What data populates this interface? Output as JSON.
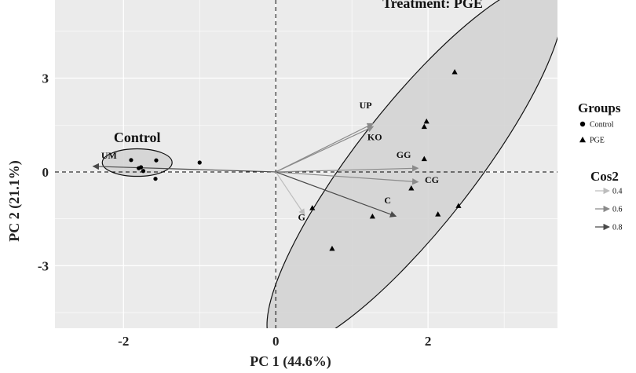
{
  "chart_data": {
    "type": "scatter",
    "subtype": "pca-biplot",
    "xlabel": "PC 1 (44.6%)",
    "ylabel": "PC 2 (21.1%)",
    "xlim": [
      -2.9,
      3.7
    ],
    "ylim": [
      -5.0,
      5.5
    ],
    "x_ticks": [
      -2,
      0,
      2
    ],
    "y_ticks": [
      -3,
      0,
      3
    ],
    "grid": true,
    "background": "#ebebeb",
    "groups": [
      {
        "name": "Control",
        "label": "Control",
        "marker": "circle",
        "points": [
          {
            "x": -1.9,
            "y": 0.38
          },
          {
            "x": -1.8,
            "y": 0.12
          },
          {
            "x": -1.77,
            "y": 0.15
          },
          {
            "x": -1.74,
            "y": 0.03
          },
          {
            "x": -1.57,
            "y": 0.37
          },
          {
            "x": -1.58,
            "y": -0.22
          },
          {
            "x": -1.0,
            "y": 0.3
          }
        ],
        "ellipse": {
          "cx": -1.82,
          "cy": 0.3,
          "rx": 0.65,
          "ry": 0.44,
          "angle": 0
        }
      },
      {
        "name": "PGE",
        "label": "Treatment: PGE",
        "marker": "triangle",
        "points": [
          {
            "x": 2.35,
            "y": 3.2
          },
          {
            "x": 1.98,
            "y": 1.62
          },
          {
            "x": 1.95,
            "y": 1.45
          },
          {
            "x": 1.95,
            "y": 0.42
          },
          {
            "x": 1.78,
            "y": -0.52
          },
          {
            "x": 0.48,
            "y": -1.15
          },
          {
            "x": 1.27,
            "y": -1.42
          },
          {
            "x": 0.74,
            "y": -2.45
          },
          {
            "x": 2.13,
            "y": -1.35
          },
          {
            "x": 2.4,
            "y": -1.08
          }
        ],
        "ellipse": {
          "cx": 1.83,
          "cy": 0.2,
          "rx": 4.25,
          "ry": 1.9,
          "angle": 52
        }
      }
    ],
    "variables": [
      {
        "name": "UP",
        "x": 1.28,
        "y": 1.55,
        "cos2": 0.62
      },
      {
        "name": "KO",
        "x": 1.28,
        "y": 1.45,
        "cos2": 0.55
      },
      {
        "name": "GG",
        "x": 1.87,
        "y": 0.12,
        "cos2": 0.55
      },
      {
        "name": "CG",
        "x": 1.87,
        "y": -0.32,
        "cos2": 0.62
      },
      {
        "name": "C",
        "x": 1.58,
        "y": -1.42,
        "cos2": 0.78
      },
      {
        "name": "G",
        "x": 0.38,
        "y": -1.38,
        "cos2": 0.35
      },
      {
        "name": "UM",
        "x": -2.4,
        "y": 0.18,
        "cos2": 0.85
      }
    ],
    "variable_labels": [
      {
        "name": "UP",
        "x": 1.18,
        "y": 2.03
      },
      {
        "name": "KO",
        "x": 1.3,
        "y": 1.02
      },
      {
        "name": "GG",
        "x": 1.68,
        "y": 0.45
      },
      {
        "name": "CG",
        "x": 2.05,
        "y": -0.35
      },
      {
        "name": "C",
        "x": 1.47,
        "y": -1.0
      },
      {
        "name": "G",
        "x": 0.34,
        "y": -1.55
      },
      {
        "name": "UM",
        "x": -2.19,
        "y": 0.43
      }
    ],
    "legend": {
      "placement": "right",
      "groups_title": "Groups",
      "groups": [
        {
          "label": "Control",
          "marker": "circle"
        },
        {
          "label": "PGE",
          "marker": "triangle"
        }
      ],
      "cos2_title": "Cos2",
      "cos2": [
        {
          "label": "0.4",
          "color": "#bdbdbd"
        },
        {
          "label": "0.6",
          "color": "#8a8a8a"
        },
        {
          "label": "0.8",
          "color": "#4a4a4a"
        }
      ]
    },
    "colors": {
      "panel": "#ebebeb",
      "grid": "#ffffff",
      "ellipse_fill": "#d4d4d4",
      "ellipse_stroke": "#111111",
      "points": "#000000"
    }
  }
}
